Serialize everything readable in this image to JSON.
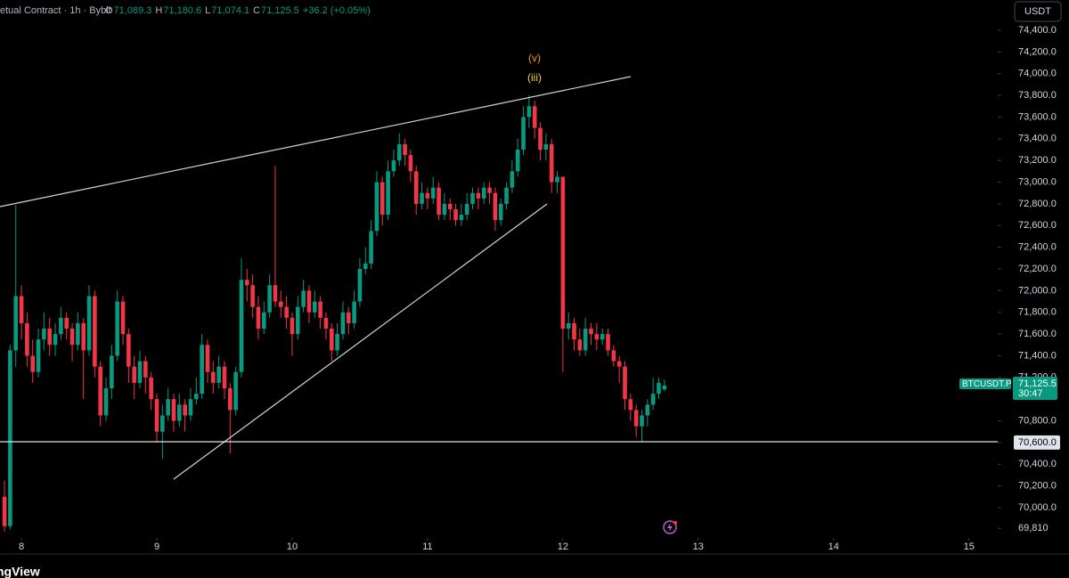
{
  "header": {
    "symbol": "etual Contract · 1h · Bybit",
    "ohlc": [
      {
        "label": "O",
        "value": "71,089.3"
      },
      {
        "label": "H",
        "value": "71,180.6"
      },
      {
        "label": "L",
        "value": "71,074.1"
      },
      {
        "label": "C",
        "value": "71,125.5"
      }
    ],
    "change": "+36.2 (+0.05%)"
  },
  "currency_button": "USDT",
  "price_tag": {
    "symbol": "BTCUSDT.P",
    "price": "71,125.5",
    "countdown": "30:47"
  },
  "brand": "ngView",
  "chart_data": {
    "type": "candlestick",
    "up_color": "#089981",
    "down_color": "#f23645",
    "annotations": [
      "(v)",
      "(iii)"
    ],
    "xlim": [
      -3.8,
      173.1
    ],
    "xticks": [
      {
        "value": 0,
        "label": "8"
      },
      {
        "value": 24,
        "label": "9"
      },
      {
        "value": 48,
        "label": "10"
      },
      {
        "value": 72,
        "label": "11"
      },
      {
        "value": 96,
        "label": "12"
      },
      {
        "value": 120,
        "label": "13"
      },
      {
        "value": 144,
        "label": "14"
      },
      {
        "value": 168,
        "label": "15"
      }
    ],
    "ylim": [
      69721,
      74679
    ],
    "yticks": [
      {
        "value": 74400,
        "label": "74,400.0"
      },
      {
        "value": 74200,
        "label": "74,200.0"
      },
      {
        "value": 74000,
        "label": "74,000.0"
      },
      {
        "value": 73800,
        "label": "73,800.0"
      },
      {
        "value": 73600,
        "label": "73,600.0"
      },
      {
        "value": 73400,
        "label": "73,400.0"
      },
      {
        "value": 73200,
        "label": "73,200.0"
      },
      {
        "value": 73000,
        "label": "73,000.0"
      },
      {
        "value": 72800,
        "label": "72,800.0"
      },
      {
        "value": 72600,
        "label": "72,600.0"
      },
      {
        "value": 72400,
        "label": "72,400.0"
      },
      {
        "value": 72200,
        "label": "72,200.0"
      },
      {
        "value": 72000,
        "label": "72,000.0"
      },
      {
        "value": 71800,
        "label": "71,800.0"
      },
      {
        "value": 71600,
        "label": "71,600.0"
      },
      {
        "value": 71400,
        "label": "71,400.0"
      },
      {
        "value": 71200,
        "label": "71,200.0"
      },
      {
        "value": 70800,
        "label": "70,800.0"
      },
      {
        "value": 70600,
        "label": "70,600.0"
      },
      {
        "value": 70400,
        "label": "70,400.0"
      },
      {
        "value": 70200,
        "label": "70,200.0"
      },
      {
        "value": 70000,
        "label": "70,000.0"
      },
      {
        "value": 69810,
        "label": "69,810"
      }
    ],
    "x": [
      -3,
      -2,
      -1,
      0,
      1,
      2,
      3,
      4,
      5,
      6,
      7,
      8,
      9,
      10,
      11,
      12,
      13,
      14,
      15,
      16,
      17,
      18,
      19,
      20,
      21,
      22,
      23,
      24,
      25,
      26,
      27,
      28,
      29,
      30,
      31,
      32,
      33,
      34,
      35,
      36,
      37,
      38,
      39,
      40,
      41,
      42,
      43,
      44,
      45,
      46,
      47,
      48,
      49,
      50,
      51,
      52,
      53,
      54,
      55,
      56,
      57,
      58,
      59,
      60,
      61,
      62,
      63,
      64,
      65,
      66,
      67,
      68,
      69,
      70,
      71,
      72,
      73,
      74,
      75,
      76,
      77,
      78,
      79,
      80,
      81,
      82,
      83,
      84,
      85,
      86,
      87,
      88,
      89,
      90,
      91,
      92,
      93,
      94,
      95,
      96,
      97,
      98,
      99,
      100,
      101,
      102,
      103,
      104,
      105,
      106,
      107,
      108,
      109,
      110,
      111,
      112,
      113,
      114
    ],
    "open": [
      70100,
      69830,
      71450,
      71950,
      71700,
      71400,
      71250,
      71550,
      71650,
      71500,
      71600,
      71750,
      71650,
      71500,
      71700,
      71450,
      71950,
      71300,
      70850,
      71100,
      71400,
      71900,
      71600,
      71300,
      71150,
      71350,
      71200,
      71000,
      70700,
      70850,
      71000,
      70800,
      70950,
      70850,
      71000,
      71050,
      71500,
      71250,
      71150,
      71300,
      71100,
      70900,
      71250,
      72100,
      72050,
      71850,
      71650,
      71800,
      72050,
      71900,
      71850,
      71750,
      71600,
      71850,
      72000,
      71800,
      71900,
      71750,
      71650,
      71450,
      71600,
      71800,
      71700,
      71900,
      72200,
      72250,
      72550,
      73000,
      72700,
      73100,
      73200,
      73350,
      73250,
      73100,
      72800,
      72900,
      72850,
      72950,
      72700,
      72800,
      72750,
      72650,
      72700,
      72800,
      72900,
      72850,
      72950,
      72900,
      72650,
      72800,
      72950,
      73100,
      73300,
      73600,
      73700,
      73500,
      73300,
      73350,
      73000,
      73050,
      71650,
      71700,
      71550,
      71450,
      71650,
      71600,
      71550,
      71600,
      71450,
      71350,
      71300,
      71000,
      70900,
      70750,
      70850,
      70950,
      71050,
      71089.3
    ],
    "high": [
      70250,
      71500,
      72790,
      72050,
      71800,
      71550,
      71650,
      71800,
      71750,
      71700,
      71850,
      71800,
      71700,
      71800,
      71750,
      72050,
      72000,
      71350,
      71200,
      71500,
      72000,
      71950,
      71650,
      71400,
      71450,
      71400,
      71250,
      71050,
      70950,
      71100,
      71050,
      71050,
      71000,
      71100,
      71200,
      71600,
      71550,
      71350,
      71400,
      71350,
      71150,
      71300,
      72300,
      72200,
      72150,
      71950,
      71900,
      72150,
      73150,
      72000,
      71950,
      71800,
      71950,
      72100,
      72050,
      72000,
      71950,
      71800,
      71700,
      71700,
      71900,
      71850,
      72000,
      72300,
      72400,
      72650,
      73100,
      73050,
      73200,
      73300,
      73450,
      73400,
      73300,
      73150,
      73000,
      72950,
      73050,
      73000,
      72900,
      72850,
      72800,
      72800,
      72900,
      72950,
      72950,
      73000,
      73000,
      72950,
      72850,
      73000,
      73200,
      73400,
      73700,
      73800,
      73750,
      73550,
      73450,
      73400,
      73100,
      73050,
      71800,
      71750,
      71650,
      71750,
      71700,
      71700,
      71650,
      71650,
      71500,
      71400,
      71350,
      71050,
      70950,
      70900,
      71000,
      71200,
      71200,
      71180.6
    ],
    "low": [
      69780,
      69800,
      71300,
      71550,
      71300,
      71150,
      71200,
      71450,
      71400,
      71400,
      71550,
      71550,
      71350,
      71450,
      71000,
      71400,
      71200,
      70750,
      70800,
      71000,
      71350,
      71500,
      71150,
      71000,
      71100,
      71050,
      70900,
      70600,
      70450,
      70800,
      70700,
      70750,
      70700,
      70800,
      70950,
      71000,
      71150,
      71050,
      71100,
      71000,
      70500,
      70850,
      71200,
      71900,
      71750,
      71550,
      71600,
      71750,
      71850,
      71750,
      71650,
      71400,
      71550,
      71800,
      71700,
      71750,
      71650,
      71550,
      71350,
      71400,
      71550,
      71600,
      71650,
      71850,
      72150,
      72200,
      72500,
      72600,
      72650,
      73050,
      73150,
      73150,
      73000,
      72700,
      72750,
      72750,
      72800,
      72650,
      72650,
      72650,
      72600,
      72600,
      72650,
      72750,
      72750,
      72800,
      72800,
      72550,
      72600,
      72750,
      72900,
      73050,
      73250,
      73500,
      73400,
      73200,
      73200,
      72900,
      72900,
      71250,
      71550,
      71450,
      71400,
      71400,
      71500,
      71450,
      71500,
      71400,
      71300,
      71150,
      70900,
      70800,
      70650,
      70600,
      70750,
      70900,
      71000,
      71074.1
    ],
    "close": [
      69830,
      71450,
      71950,
      71700,
      71400,
      71250,
      71550,
      71650,
      71500,
      71600,
      71750,
      71650,
      71500,
      71700,
      71450,
      71950,
      71300,
      70850,
      71100,
      71400,
      71900,
      71600,
      71300,
      71150,
      71350,
      71200,
      71000,
      70700,
      70850,
      71000,
      70800,
      70950,
      70850,
      71000,
      71050,
      71500,
      71250,
      71150,
      71300,
      71100,
      70900,
      71250,
      72100,
      72050,
      71850,
      71650,
      71800,
      72050,
      71900,
      71850,
      71750,
      71600,
      71850,
      72000,
      71800,
      71900,
      71750,
      71650,
      71450,
      71600,
      71800,
      71700,
      71900,
      72200,
      72250,
      72550,
      73000,
      72700,
      73100,
      73200,
      73350,
      73250,
      73100,
      72800,
      72900,
      72850,
      72950,
      72700,
      72800,
      72750,
      72650,
      72700,
      72800,
      72900,
      72850,
      72950,
      72900,
      72650,
      72800,
      72950,
      73100,
      73300,
      73600,
      73700,
      73500,
      73300,
      73350,
      73000,
      73050,
      71650,
      71700,
      71550,
      71450,
      71650,
      71600,
      71550,
      71600,
      71450,
      71350,
      71300,
      71000,
      70900,
      70750,
      70850,
      70950,
      71050,
      71150,
      71125.5
    ]
  }
}
